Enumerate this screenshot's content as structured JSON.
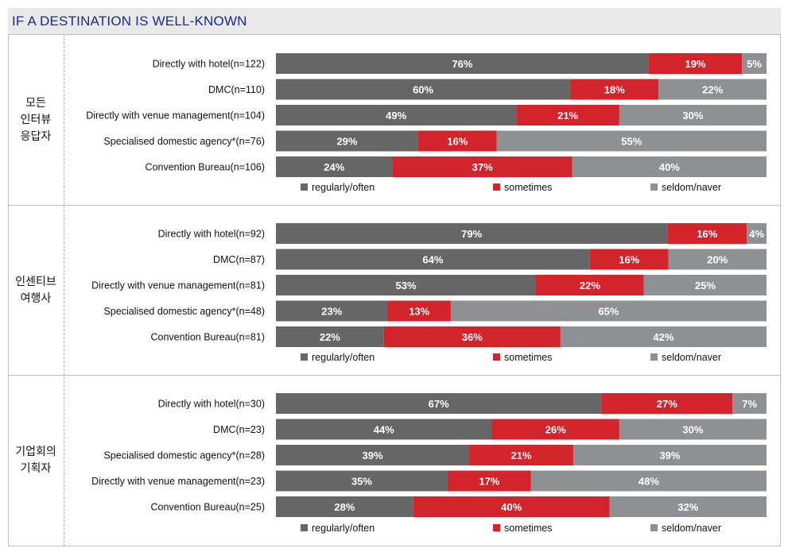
{
  "header": {
    "title": "IF A DESTINATION IS WELL-KNOWN"
  },
  "colors": {
    "regularly": "#666666",
    "sometimes": "#d3232b",
    "seldom": "#8f9093"
  },
  "chart_data": [
    {
      "type": "bar",
      "orientation": "horizontal",
      "stacked": true,
      "group_label": [
        "모든",
        "인터뷰",
        "응답자"
      ],
      "categories": [
        "Directly with hotel(n=122)",
        "DMC(n=110)",
        "Directly with venue management(n=104)",
        "Specialised domestic agency*(n=76)",
        "Convention Bureau(n=106)"
      ],
      "series": [
        {
          "name": "regularly/often",
          "values": [
            76,
            60,
            49,
            29,
            24
          ]
        },
        {
          "name": "sometimes",
          "values": [
            19,
            18,
            21,
            16,
            37
          ]
        },
        {
          "name": "seldom/naver",
          "values": [
            5,
            22,
            30,
            55,
            40
          ]
        }
      ],
      "xlim": [
        0,
        100
      ]
    },
    {
      "type": "bar",
      "orientation": "horizontal",
      "stacked": true,
      "group_label": [
        "인센티브",
        "여행사"
      ],
      "categories": [
        "Directly with hotel(n=92)",
        "DMC(n=87)",
        "Directly with venue management(n=81)",
        "Specialised domestic agency*(n=48)",
        "Convention Bureau(n=81)"
      ],
      "series": [
        {
          "name": "regularly/often",
          "values": [
            79,
            64,
            53,
            23,
            22
          ]
        },
        {
          "name": "sometimes",
          "values": [
            16,
            16,
            22,
            13,
            36
          ]
        },
        {
          "name": "seldom/naver",
          "values": [
            4,
            20,
            25,
            65,
            42
          ]
        }
      ],
      "xlim": [
        0,
        100
      ]
    },
    {
      "type": "bar",
      "orientation": "horizontal",
      "stacked": true,
      "group_label": [
        "기업회의",
        "기획자"
      ],
      "categories": [
        "Directly with hotel(n=30)",
        "DMC(n=23)",
        "Specialised domestic agency*(n=28)",
        "Directly with venue management(n=23)",
        "Convention Bureau(n=25)"
      ],
      "series": [
        {
          "name": "regularly/often",
          "values": [
            67,
            44,
            39,
            35,
            28
          ]
        },
        {
          "name": "sometimes",
          "values": [
            27,
            26,
            21,
            17,
            40
          ]
        },
        {
          "name": "seldom/naver",
          "values": [
            7,
            30,
            39,
            48,
            32
          ]
        }
      ],
      "xlim": [
        0,
        100
      ]
    }
  ]
}
